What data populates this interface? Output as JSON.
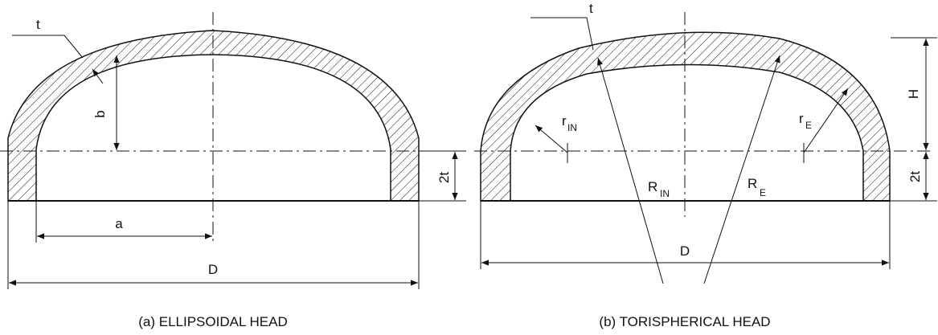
{
  "figure": {
    "ellipsoidal": {
      "caption": "(a) ELLIPSOIDAL HEAD",
      "labels": {
        "t": "t",
        "b": "b",
        "a": "a",
        "D": "D",
        "two_t": "2t"
      }
    },
    "torispherical": {
      "caption": "(b) TORISPHERICAL HEAD",
      "labels": {
        "t": "t",
        "H": "H",
        "two_t": "2t",
        "D": "D",
        "r": "r",
        "r_in_sub": "IN",
        "r_e_sub": "E",
        "R": "R",
        "R_in_sub": "IN",
        "R_e_sub": "E"
      }
    }
  }
}
